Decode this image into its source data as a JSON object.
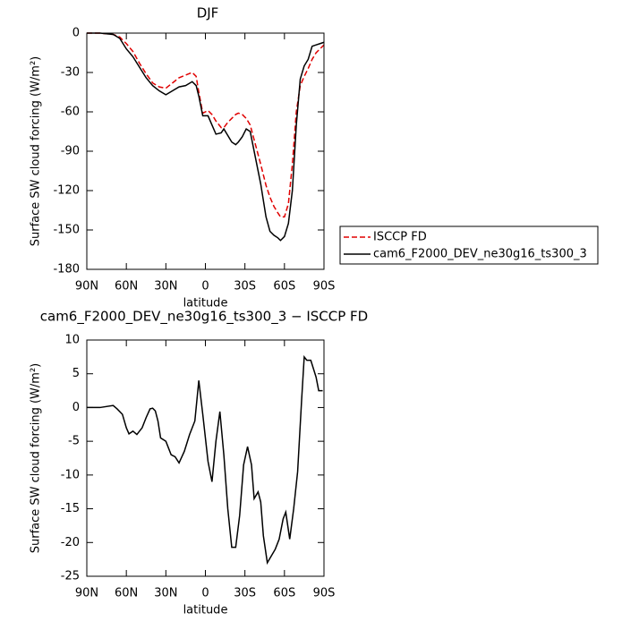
{
  "chart_data": [
    {
      "type": "line",
      "title": "DJF",
      "xlabel": "latitude",
      "ylabel": "Surface SW cloud forcing (W/m²)",
      "x": [
        90,
        80,
        70,
        65,
        60,
        55,
        50,
        45,
        40,
        35,
        30,
        25,
        20,
        15,
        10,
        7,
        5,
        2,
        -2,
        -5,
        -8,
        -12,
        -14,
        -17,
        -20,
        -23,
        -25,
        -28,
        -31,
        -34,
        -38,
        -42,
        -46,
        -49,
        -52,
        -55,
        -57,
        -60,
        -63,
        -66,
        -69,
        -72,
        -75,
        -78,
        -81,
        -84,
        -87,
        -90
      ],
      "series": [
        {
          "name": "ISCCP FD",
          "color": "#e00000",
          "linestyle": "dashed",
          "values": [
            0,
            0,
            -1,
            -3,
            -8,
            -14,
            -23,
            -31,
            -38,
            -41,
            -42,
            -38,
            -34,
            -32,
            -30,
            -33,
            -45,
            -61,
            -59,
            -62,
            -67,
            -72,
            -72,
            -68,
            -65,
            -62,
            -61,
            -62,
            -65,
            -70,
            -85,
            -100,
            -116,
            -125,
            -132,
            -137,
            -140,
            -140,
            -130,
            -100,
            -60,
            -40,
            -33,
            -27,
            -20,
            -15,
            -12,
            -9
          ]
        },
        {
          "name": "cam6_F2000_DEV_ne30g16_ts300_3",
          "color": "#000000",
          "linestyle": "solid",
          "values": [
            0,
            0,
            -1,
            -4,
            -12,
            -18,
            -26,
            -34,
            -40,
            -44,
            -47,
            -44,
            -41,
            -40,
            -37,
            -40,
            -48,
            -63,
            -63,
            -70,
            -77,
            -76,
            -73,
            -78,
            -83,
            -85,
            -83,
            -79,
            -73,
            -75,
            -95,
            -115,
            -140,
            -151,
            -154,
            -156,
            -158,
            -155,
            -145,
            -120,
            -70,
            -35,
            -25,
            -20,
            -10,
            -9,
            -8,
            -7
          ]
        }
      ],
      "xlim": [
        90,
        -90
      ],
      "ylim": [
        -180,
        0
      ],
      "xticks": [
        {
          "value": 90,
          "label": "90N"
        },
        {
          "value": 60,
          "label": "60N"
        },
        {
          "value": 30,
          "label": "30N"
        },
        0,
        {
          "value": -30,
          "label": "30S"
        },
        {
          "value": -60,
          "label": "60S"
        },
        {
          "value": -90,
          "label": "90S"
        }
      ],
      "yticks": [
        0,
        -30,
        -60,
        -90,
        -120,
        -150,
        -180
      ],
      "legend": "outside-right"
    },
    {
      "type": "line",
      "title": "cam6_F2000_DEV_ne30g16_ts300_3 − ISCCP FD",
      "xlabel": "latitude",
      "ylabel": "Surface SW cloud forcing (W/m²)",
      "x": [
        90,
        80,
        70,
        67,
        63,
        60,
        58,
        55,
        52,
        48,
        45,
        42,
        40,
        38,
        36,
        34,
        30,
        28,
        26,
        23,
        20,
        16,
        12,
        8,
        5,
        2,
        -2,
        -5,
        -8,
        -11,
        -14,
        -17,
        -20,
        -23,
        -26,
        -29,
        -32,
        -35,
        -37,
        -40,
        -42,
        -44,
        -47,
        -50,
        -53,
        -56,
        -59,
        -61,
        -64,
        -67,
        -70,
        -73,
        -75,
        -77,
        -80,
        -84,
        -86,
        -89
      ],
      "series": [
        {
          "color": "#000000",
          "linestyle": "solid",
          "values": [
            0,
            0,
            0.3,
            -0.2,
            -1,
            -3,
            -3.9,
            -3.5,
            -4,
            -3,
            -1.5,
            -0.2,
            -0.1,
            -0.5,
            -2,
            -4.5,
            -5,
            -6,
            -7,
            -7.3,
            -8.2,
            -6.5,
            -4,
            -2,
            4,
            -1,
            -8,
            -11,
            -5,
            -0.6,
            -7,
            -15,
            -20.7,
            -20.7,
            -16,
            -8.5,
            -5.8,
            -8.5,
            -13.5,
            -12.5,
            -14,
            -19,
            -23,
            -22,
            -21,
            -19.5,
            -16.5,
            -15.5,
            -19.5,
            -15,
            -9.5,
            1,
            7.5,
            7,
            7,
            4.5,
            2.5,
            2.5
          ]
        }
      ],
      "xlim": [
        90,
        -90
      ],
      "ylim": [
        -25,
        10
      ],
      "xticks": [
        {
          "value": 90,
          "label": "90N"
        },
        {
          "value": 60,
          "label": "60N"
        },
        {
          "value": 30,
          "label": "30N"
        },
        0,
        {
          "value": -30,
          "label": "30S"
        },
        {
          "value": -60,
          "label": "60S"
        },
        {
          "value": -90,
          "label": "90S"
        }
      ],
      "yticks": [
        10,
        5,
        0,
        -5,
        -10,
        -15,
        -20,
        -25
      ]
    }
  ]
}
